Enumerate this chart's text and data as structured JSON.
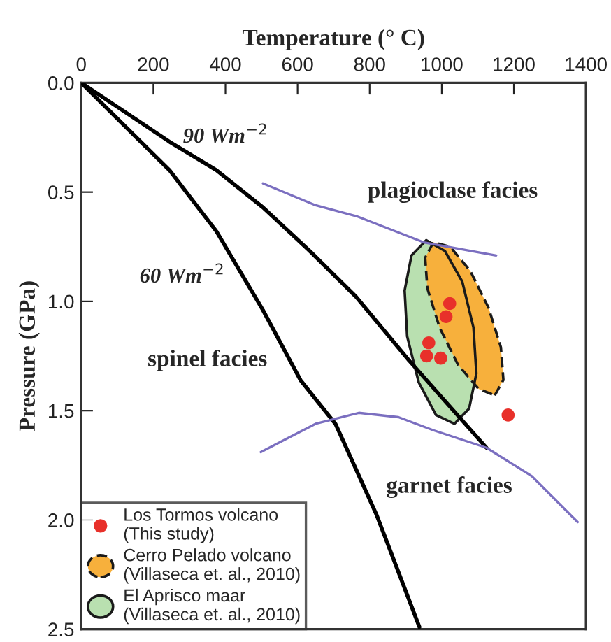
{
  "chart_data": {
    "type": "line",
    "xlabel": "Temperature (° C)",
    "ylabel": "Pressure (GPa)",
    "xlim": [
      0,
      1400
    ],
    "xticks": [
      0,
      200,
      400,
      600,
      800,
      1000,
      1200,
      1400
    ],
    "ylim": [
      2.5,
      0
    ],
    "yticks": [
      {
        "value": 0,
        "label": "0.0"
      },
      0.5,
      {
        "value": 1,
        "label": "1.0"
      },
      1.5,
      {
        "value": 2,
        "label": "2.0"
      },
      2.5
    ],
    "grid": false,
    "legend": "bottom left",
    "series": [
      {
        "type": "area",
        "name": "El Aprisco maar\n(Villaseca et. al., 2010)",
        "color": "#b9e0b0",
        "line_style": "solid",
        "x": [
          1035,
          1076,
          1096,
          1088,
          1057,
          1009,
          957,
          916,
          897,
          904,
          936,
          984
        ],
        "values": [
          1.56,
          1.49,
          1.33,
          1.12,
          0.91,
          0.77,
          0.72,
          0.79,
          0.95,
          1.16,
          1.37,
          1.52
        ]
      },
      {
        "type": "area",
        "name": "Cerro Pelado volcano\n(Villaseca et. al., 2010)",
        "color": "#f7b03c",
        "line_style": "dashed",
        "x": [
          1147,
          1171,
          1164,
          1130,
          1079,
          1023,
          977,
          954,
          960,
          994,
          1045,
          1102
        ],
        "values": [
          1.43,
          1.36,
          1.21,
          1.03,
          0.86,
          0.75,
          0.73,
          0.8,
          0.94,
          1.12,
          1.29,
          1.4
        ]
      },
      {
        "color": "#000000",
        "line_style": "solid",
        "marker": "none",
        "x": [
          0,
          245,
          375,
          504,
          634,
          763,
          909,
          1124
        ],
        "values": [
          0,
          0.27,
          0.4,
          0.57,
          0.77,
          0.98,
          1.27,
          1.67
        ]
      },
      {
        "color": "#000000",
        "line_style": "solid",
        "marker": "none",
        "x": [
          0,
          116,
          245,
          375,
          504,
          608,
          705,
          820,
          938
        ],
        "values": [
          0,
          0.19,
          0.4,
          0.68,
          1.04,
          1.36,
          1.56,
          1.98,
          2.49
        ]
      },
      {
        "type": "line",
        "color": "#7b6fc0",
        "line_style": "solid",
        "marker": "none",
        "x": [
          504,
          650,
          763,
          950,
          1151
        ],
        "values": [
          0.46,
          0.56,
          0.61,
          0.73,
          0.79
        ]
      },
      {
        "type": "line",
        "color": "#7b6fc0",
        "line_style": "solid",
        "marker": "none",
        "x": [
          498,
          556,
          650,
          770,
          880,
          977,
          1124,
          1250,
          1377
        ],
        "values": [
          1.69,
          1.64,
          1.56,
          1.51,
          1.53,
          1.59,
          1.67,
          1.8,
          2.01
        ]
      },
      {
        "type": "scatter",
        "name": "Los Tormos volcano\n(This study)",
        "color": "#e8302a",
        "marker": "circle",
        "x": [
          1022,
          1012,
          964,
          958,
          997,
          1184
        ],
        "values": [
          1.01,
          1.07,
          1.19,
          1.25,
          1.26,
          1.52
        ]
      }
    ],
    "annotations": [
      "90 Wm$^{−2}$",
      "60 Wm$^{−2}$",
      "spinel facies",
      "plagioclase facies",
      "garnet facies"
    ]
  }
}
